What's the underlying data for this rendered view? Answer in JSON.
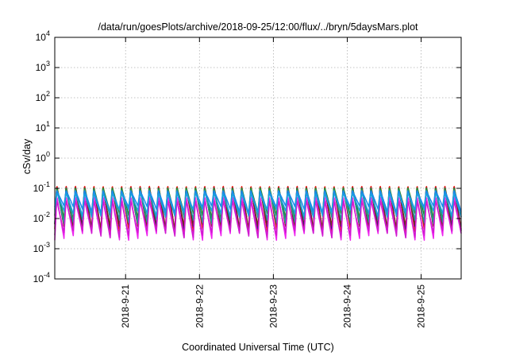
{
  "chart_data": {
    "type": "line",
    "title": "/data/run/goesPlots/archive/2018-09-25/12:00/flux/../bryn/5daysMars.plot",
    "xlabel": "Coordinated Universal Time (UTC)",
    "ylabel": "cSv/day",
    "y_scale": "log",
    "ylim": [
      0.0001,
      10000
    ],
    "xlim": [
      "2018-09-20 01:00",
      "2018-09-25 13:00"
    ],
    "grid": true,
    "x_ticks": [
      "2018-9-21",
      "2018-9-22",
      "2018-9-23",
      "2018-9-24",
      "2018-9-25"
    ],
    "y_ticks": [
      {
        "base": "10",
        "exp": "-4",
        "value": 0.0001
      },
      {
        "base": "10",
        "exp": "-3",
        "value": 0.001
      },
      {
        "base": "10",
        "exp": "-2",
        "value": 0.01
      },
      {
        "base": "10",
        "exp": "-1",
        "value": 0.1
      },
      {
        "base": "10",
        "exp": "0",
        "value": 1
      },
      {
        "base": "10",
        "exp": "1",
        "value": 10
      },
      {
        "base": "10",
        "exp": "2",
        "value": 100
      },
      {
        "base": "10",
        "exp": "3",
        "value": 1000
      },
      {
        "base": "10",
        "exp": "4",
        "value": 10000
      }
    ],
    "oscillation_period_hours": 3,
    "series": [
      {
        "color": "#e8170e",
        "max": 0.13,
        "min": 0.0045
      },
      {
        "color": "#1a1a8c",
        "max": 0.115,
        "min": 0.0052
      },
      {
        "color": "#7a2a1a",
        "max": 0.1,
        "min": 0.005
      },
      {
        "color": "#2a8a2a",
        "max": 0.11,
        "min": 0.012
      },
      {
        "color": "#1f9a9a",
        "max": 0.095,
        "min": 0.009
      },
      {
        "color": "#ee22ee",
        "max": 0.055,
        "min": 0.0025
      },
      {
        "color": "#d01ad0",
        "max": 0.04,
        "min": 0.003
      },
      {
        "color": "#1a88ee",
        "max": 0.085,
        "min": 0.02
      },
      {
        "color": "#1aa0dd",
        "max": 0.07,
        "min": 0.015
      }
    ]
  }
}
